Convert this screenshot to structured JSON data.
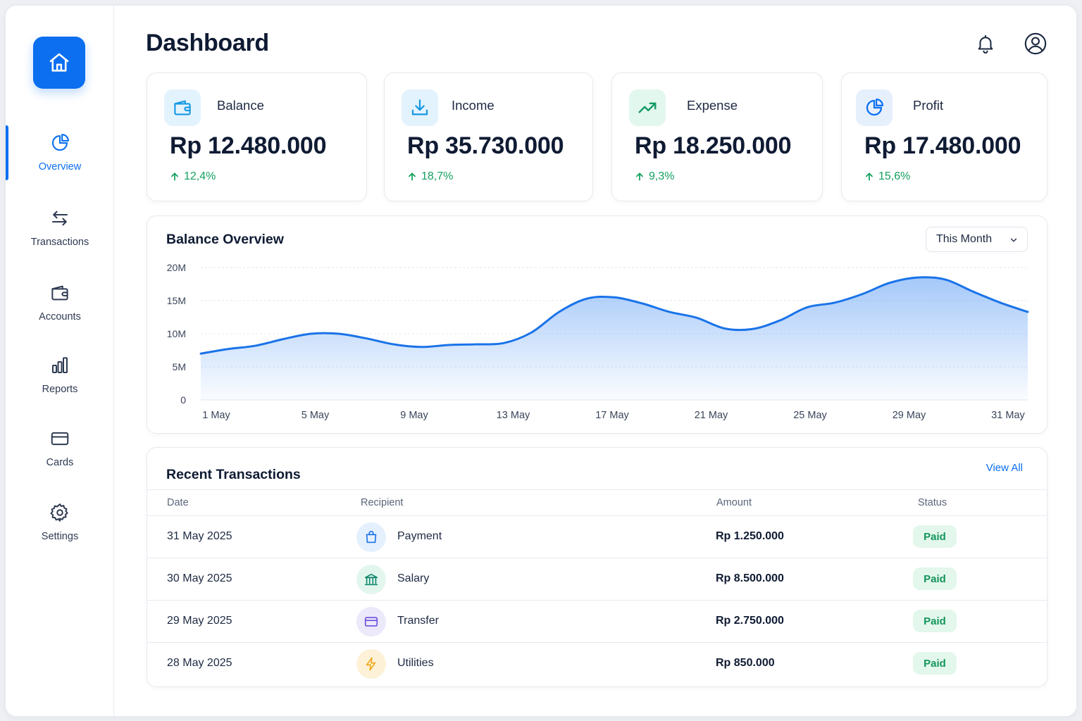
{
  "header": {
    "title": "Dashboard"
  },
  "sidebar": {
    "items": [
      {
        "label": "Overview",
        "icon": "pie-chart-icon",
        "active": true
      },
      {
        "label": "Transactions",
        "icon": "arrows-swap-icon",
        "active": false
      },
      {
        "label": "Accounts",
        "icon": "wallet-icon",
        "active": false
      },
      {
        "label": "Reports",
        "icon": "bar-chart-icon",
        "active": false
      },
      {
        "label": "Cards",
        "icon": "credit-card-icon",
        "active": false
      },
      {
        "label": "Settings",
        "icon": "gear-icon",
        "active": false
      }
    ]
  },
  "stats": [
    {
      "label": "Balance",
      "value": "Rp 12.480.000",
      "change": "12,4%",
      "icon": "wallet-icon",
      "icon_bg": "#e3f3fd",
      "icon_color": "#1598e3"
    },
    {
      "label": "Income",
      "value": "Rp 35.730.000",
      "change": "18,7%",
      "icon": "download-icon",
      "icon_bg": "#e3f3fd",
      "icon_color": "#1598e3"
    },
    {
      "label": "Expense",
      "value": "Rp 18.250.000",
      "change": "9,3%",
      "icon": "trending-up-icon",
      "icon_bg": "#e2f7ee",
      "icon_color": "#139a63"
    },
    {
      "label": "Profit",
      "value": "Rp 17.480.000",
      "change": "15,6%",
      "icon": "pie-chart-icon",
      "icon_bg": "#e6f0fd",
      "icon_color": "#0b6ff0"
    }
  ],
  "balance_overview": {
    "title": "Balance Overview",
    "period": "This Month"
  },
  "chart_data": {
    "type": "area",
    "title": "Balance Overview",
    "xlabel": "",
    "ylabel": "",
    "x_tick_labels": [
      "1 May",
      "5 May",
      "9 May",
      "13 May",
      "17 May",
      "21 May",
      "25 May",
      "29 May",
      "31 May"
    ],
    "y_tick_labels": [
      "0",
      "5M",
      "10M",
      "15M",
      "20M"
    ],
    "ylim": [
      0,
      20000000
    ],
    "xlim": [
      1,
      31
    ],
    "grid": true,
    "series": [
      {
        "x": [
          1,
          2,
          3,
          4,
          5,
          6,
          7,
          8,
          9,
          10,
          11,
          12,
          13,
          14,
          15,
          16,
          17,
          18,
          19,
          20,
          21,
          22,
          23,
          24,
          25,
          26,
          27,
          28,
          29,
          30,
          31
        ],
        "values": [
          7000000,
          7700000,
          8200000,
          9200000,
          10000000,
          10000000,
          9300000,
          8400000,
          8000000,
          8300000,
          8400000,
          8600000,
          10200000,
          13300000,
          15300000,
          15500000,
          14600000,
          13300000,
          12400000,
          10800000,
          10700000,
          12000000,
          14000000,
          14700000,
          16000000,
          17700000,
          18500000,
          18200000,
          16400000,
          14700000,
          13300000
        ],
        "color": "#1a73e8"
      }
    ]
  },
  "transactions": {
    "title": "Recent Transactions",
    "view_all": "View All",
    "columns": [
      "Date",
      "Recipient",
      "Amount",
      "Status"
    ],
    "rows": [
      {
        "date": "31 May 2025",
        "recipient": "Payment",
        "amount": "Rp 1.250.000",
        "status": "Paid",
        "icon": "shopping-bag-icon",
        "icon_bg": "#e4f0fd",
        "icon_color": "#1a73e8"
      },
      {
        "date": "30 May 2025",
        "recipient": "Salary",
        "amount": "Rp 8.500.000",
        "status": "Paid",
        "icon": "bank-icon",
        "icon_bg": "#e2f6ee",
        "icon_color": "#12876b"
      },
      {
        "date": "29 May 2025",
        "recipient": "Transfer",
        "amount": "Rp 2.750.000",
        "status": "Paid",
        "icon": "credit-card-icon",
        "icon_bg": "#ece9fb",
        "icon_color": "#6d4fe0"
      },
      {
        "date": "28 May 2025",
        "recipient": "Utilities",
        "amount": "Rp 850.000",
        "status": "Paid",
        "icon": "bolt-icon",
        "icon_bg": "#fdf2d8",
        "icon_color": "#f0a81d"
      }
    ]
  },
  "colors": {
    "accent": "#0b6ff0",
    "positive": "#13a05f",
    "badge_bg": "#e3f7ec"
  }
}
